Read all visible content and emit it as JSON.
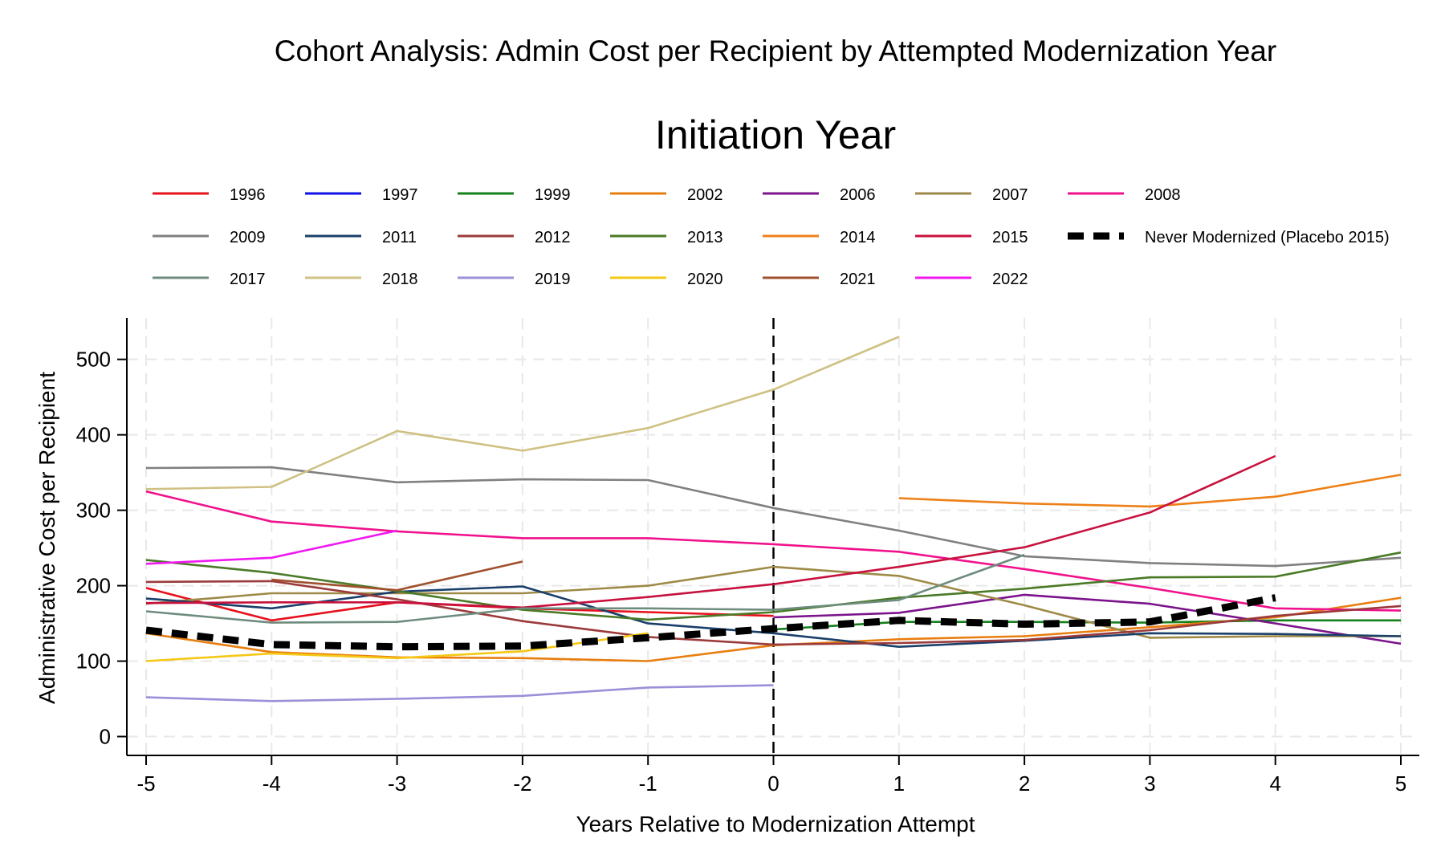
{
  "chart_data": {
    "type": "line",
    "title": "Cohort Analysis: Admin Cost per Recipient by Attempted Modernization Year",
    "legend_title": "Initiation Year",
    "xlabel": "Years Relative to Modernization Attempt",
    "ylabel": "Administrative Cost per Recipient",
    "xlim": [
      -5.2,
      5.2
    ],
    "ylim": [
      -25,
      555
    ],
    "x_ticks": [
      -5,
      -4,
      -3,
      -2,
      -1,
      0,
      1,
      2,
      3,
      4,
      5
    ],
    "x_tick_labels": [
      "-5",
      "-4",
      "-3",
      "-2",
      "-1",
      "0",
      "1",
      "2",
      "3",
      "4",
      "5"
    ],
    "y_ticks": [
      0,
      100,
      200,
      300,
      400,
      500
    ],
    "y_tick_labels": [
      "0",
      "100",
      "200",
      "300",
      "400",
      "500"
    ],
    "grid": true,
    "legend_position": "top",
    "reference_line": {
      "x": 0,
      "style": "dashed",
      "color": "#000000"
    },
    "series": [
      {
        "name": "1996",
        "color": "#e8101c",
        "style": "solid",
        "points": [
          [
            -5,
            197
          ],
          [
            -4,
            154
          ],
          [
            -3,
            178
          ],
          [
            -2,
            170
          ],
          [
            -1,
            165
          ],
          [
            0,
            160
          ]
        ]
      },
      {
        "name": "1997",
        "color": "#1010e8",
        "style": "solid",
        "points": []
      },
      {
        "name": "1999",
        "color": "#15801a",
        "style": "solid",
        "points": [
          [
            0,
            142
          ],
          [
            1,
            152
          ],
          [
            2,
            152
          ],
          [
            3,
            151
          ],
          [
            4,
            154
          ],
          [
            5,
            154
          ]
        ]
      },
      {
        "name": "2002",
        "color": "#e87e10",
        "style": "solid",
        "points": [
          [
            -5,
            137
          ],
          [
            -4,
            112
          ],
          [
            -3,
            105
          ],
          [
            -2,
            104
          ],
          [
            -1,
            100
          ],
          [
            0,
            121
          ],
          [
            1,
            129
          ],
          [
            2,
            133
          ],
          [
            3,
            145
          ],
          [
            4,
            158
          ],
          [
            5,
            184
          ]
        ]
      },
      {
        "name": "2006",
        "color": "#7b138b",
        "style": "solid",
        "points": [
          [
            0,
            158
          ],
          [
            1,
            164
          ],
          [
            2,
            188
          ],
          [
            3,
            176
          ],
          [
            4,
            150
          ],
          [
            5,
            123
          ]
        ]
      },
      {
        "name": "2007",
        "color": "#9e8a47",
        "style": "solid",
        "points": [
          [
            -5,
            176
          ],
          [
            -4,
            190
          ],
          [
            -3,
            190
          ],
          [
            -2,
            190
          ],
          [
            -1,
            200
          ],
          [
            0,
            225
          ],
          [
            1,
            213
          ],
          [
            2,
            174
          ],
          [
            3,
            131
          ],
          [
            4,
            133
          ],
          [
            5,
            133
          ]
        ]
      },
      {
        "name": "2008",
        "color": "#f0128c",
        "style": "solid",
        "points": [
          [
            -5,
            325
          ],
          [
            -4,
            285
          ],
          [
            -3,
            272
          ],
          [
            -2,
            263
          ],
          [
            -1,
            263
          ],
          [
            0,
            255
          ],
          [
            1,
            245
          ],
          [
            2,
            222
          ],
          [
            3,
            197
          ],
          [
            4,
            170
          ],
          [
            5,
            167
          ]
        ]
      },
      {
        "name": "2009",
        "color": "#808080",
        "style": "solid",
        "points": [
          [
            -5,
            356
          ],
          [
            -4,
            357
          ],
          [
            -3,
            337
          ],
          [
            -2,
            341
          ],
          [
            -1,
            340
          ],
          [
            0,
            303
          ],
          [
            1,
            273
          ],
          [
            2,
            239
          ],
          [
            3,
            230
          ],
          [
            4,
            226
          ],
          [
            5,
            237
          ]
        ]
      },
      {
        "name": "2011",
        "color": "#1a3f6a",
        "style": "solid",
        "points": [
          [
            -5,
            183
          ],
          [
            -4,
            170
          ],
          [
            -3,
            192
          ],
          [
            -2,
            199
          ],
          [
            -1,
            150
          ],
          [
            0,
            137
          ],
          [
            1,
            119
          ],
          [
            2,
            127
          ],
          [
            3,
            137
          ],
          [
            4,
            136
          ],
          [
            5,
            133
          ]
        ]
      },
      {
        "name": "2012",
        "color": "#9b3a3a",
        "style": "solid",
        "points": [
          [
            -5,
            205
          ],
          [
            -4,
            206
          ],
          [
            -3,
            182
          ],
          [
            -2,
            153
          ],
          [
            -1,
            132
          ],
          [
            0,
            122
          ],
          [
            1,
            124
          ],
          [
            2,
            128
          ],
          [
            3,
            141
          ],
          [
            4,
            160
          ],
          [
            5,
            173
          ]
        ]
      },
      {
        "name": "2013",
        "color": "#4a7a26",
        "style": "solid",
        "points": [
          [
            -5,
            234
          ],
          [
            -4,
            217
          ],
          [
            -3,
            193
          ],
          [
            -2,
            168
          ],
          [
            -1,
            155
          ],
          [
            0,
            165
          ],
          [
            1,
            184
          ],
          [
            2,
            196
          ],
          [
            3,
            211
          ],
          [
            4,
            212
          ],
          [
            5,
            244
          ]
        ]
      },
      {
        "name": "2014",
        "color": "#ee8018",
        "style": "solid",
        "points": [
          [
            1,
            316
          ],
          [
            2,
            309
          ],
          [
            3,
            305
          ],
          [
            4,
            318
          ],
          [
            5,
            347
          ]
        ]
      },
      {
        "name": "2015",
        "color": "#c8113e",
        "style": "solid",
        "points": [
          [
            -5,
            177
          ],
          [
            -4,
            178
          ],
          [
            -3,
            178
          ],
          [
            -2,
            171
          ],
          [
            -1,
            185
          ],
          [
            0,
            202
          ],
          [
            1,
            225
          ],
          [
            2,
            251
          ],
          [
            3,
            297
          ],
          [
            4,
            372
          ]
        ]
      },
      {
        "name": "Never Modernized (Placebo 2015)",
        "color": "#000000",
        "style": "dashed",
        "points": [
          [
            -5,
            141
          ],
          [
            -4,
            122
          ],
          [
            -3,
            119
          ],
          [
            -2,
            120
          ],
          [
            -1,
            131
          ],
          [
            0,
            143
          ],
          [
            1,
            154
          ],
          [
            2,
            149
          ],
          [
            3,
            152
          ],
          [
            4,
            184
          ]
        ]
      },
      {
        "name": "2017",
        "color": "#6e8c7e",
        "style": "solid",
        "points": [
          [
            -5,
            166
          ],
          [
            -4,
            151
          ],
          [
            -3,
            152
          ],
          [
            -2,
            170
          ],
          [
            -1,
            170
          ],
          [
            0,
            168
          ],
          [
            1,
            181
          ],
          [
            2,
            241
          ]
        ]
      },
      {
        "name": "2018",
        "color": "#cfc183",
        "style": "solid",
        "points": [
          [
            -5,
            328
          ],
          [
            -4,
            331
          ],
          [
            -3,
            405
          ],
          [
            -2,
            379
          ],
          [
            -1,
            409
          ],
          [
            0,
            460
          ],
          [
            1,
            530
          ]
        ]
      },
      {
        "name": "2019",
        "color": "#9b8fd8",
        "style": "solid",
        "points": [
          [
            -5,
            52
          ],
          [
            -4,
            47
          ],
          [
            -3,
            50
          ],
          [
            -2,
            54
          ],
          [
            -1,
            65
          ],
          [
            0,
            68
          ]
        ]
      },
      {
        "name": "2020",
        "color": "#f5c816",
        "style": "solid",
        "points": [
          [
            -5,
            100
          ],
          [
            -4,
            110
          ],
          [
            -3,
            104
          ],
          [
            -2,
            113
          ],
          [
            -1,
            137
          ]
        ]
      },
      {
        "name": "2021",
        "color": "#a0502c",
        "style": "solid",
        "points": [
          [
            -4,
            208
          ],
          [
            -3,
            194
          ],
          [
            -2,
            232
          ]
        ]
      },
      {
        "name": "2022",
        "color": "#f018f0",
        "style": "solid",
        "points": [
          [
            -5,
            229
          ],
          [
            -4,
            237
          ],
          [
            -3,
            273
          ]
        ]
      }
    ],
    "legend_order": [
      "1996",
      "1997",
      "1999",
      "2002",
      "2006",
      "2007",
      "2008",
      "2009",
      "2011",
      "2012",
      "2013",
      "2014",
      "2015",
      "Never Modernized (Placebo 2015)",
      "2017",
      "2018",
      "2019",
      "2020",
      "2021",
      "2022"
    ]
  }
}
